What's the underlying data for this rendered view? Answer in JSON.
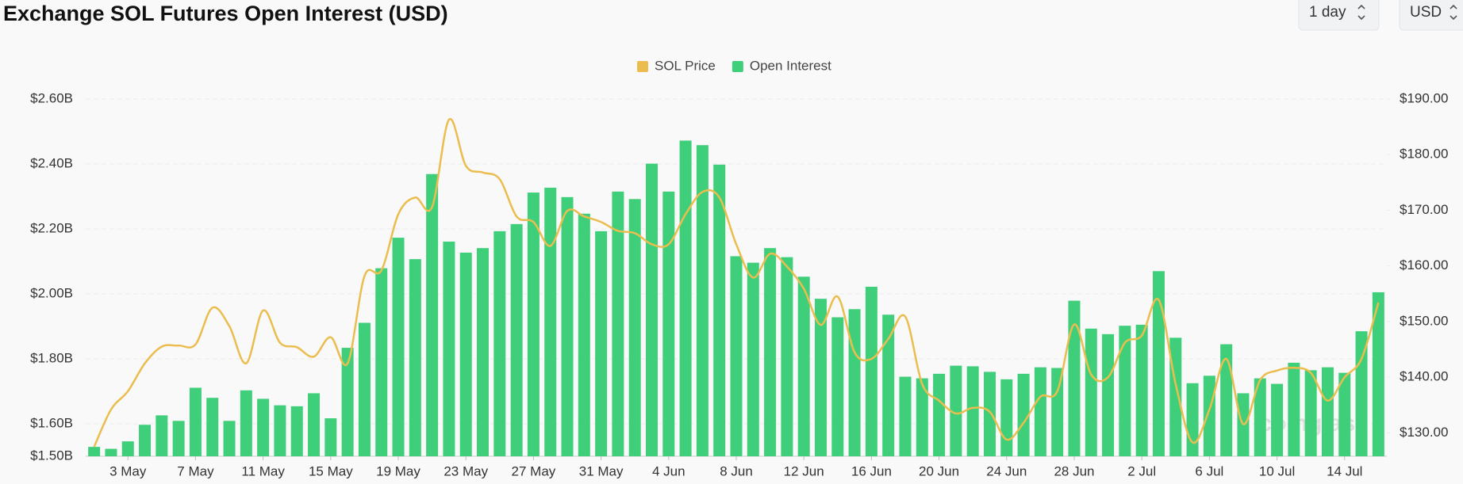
{
  "chart_data": {
    "type": "bar-line",
    "title": "Exchange SOL Futures Open Interest (USD)",
    "controls": {
      "interval": "1 day",
      "currency": "USD"
    },
    "watermark": "coinglass",
    "legend_position": "top",
    "grid": true,
    "categories": [
      null,
      null,
      "3 May",
      null,
      null,
      null,
      "7 May",
      null,
      null,
      null,
      "11 May",
      null,
      null,
      null,
      "15 May",
      null,
      null,
      null,
      "19 May",
      null,
      null,
      null,
      "23 May",
      null,
      null,
      null,
      "27 May",
      null,
      null,
      null,
      "31 May",
      null,
      null,
      null,
      "4 Jun",
      null,
      null,
      null,
      "8 Jun",
      null,
      null,
      null,
      "12 Jun",
      null,
      null,
      null,
      "16 Jun",
      null,
      null,
      null,
      "20 Jun",
      null,
      null,
      null,
      "24 Jun",
      null,
      null,
      null,
      "28 Jun",
      null,
      null,
      null,
      "2 Jul",
      null,
      null,
      null,
      "6 Jul",
      null,
      null,
      null,
      "10 Jul",
      null,
      null,
      null,
      "14 Jul",
      null,
      null
    ],
    "series": [
      {
        "name": "SOL Price",
        "type": "line",
        "axis": "y2",
        "color": "#ebbd4e",
        "values": [
          127.5,
          134.2,
          137.5,
          142.5,
          145.5,
          145.7,
          145.9,
          152.5,
          149.2,
          142.5,
          152,
          146.2,
          145.4,
          143.7,
          147.2,
          142.5,
          158.2,
          159.2,
          169.3,
          172.3,
          170.6,
          186.3,
          178,
          176.8,
          175.6,
          168.9,
          167.9,
          163.6,
          169.9,
          168.9,
          167.9,
          166.3,
          165.9,
          163.9,
          163.9,
          169.3,
          173.3,
          172.3,
          163.9,
          157.9,
          162.2,
          159.9,
          155.9,
          149.4,
          154.5,
          144.5,
          143.3,
          146.9,
          150.9,
          138.8,
          135.8,
          133.5,
          134.5,
          133.8,
          128.8,
          131.8,
          136.5,
          137.5,
          149.5,
          140.5,
          140,
          146.2,
          147.5,
          153.9,
          138.8,
          128.3,
          134.2,
          143.3,
          131.6,
          139.5,
          141.2,
          141.7,
          140.8,
          135.8,
          140,
          143.3,
          153.4
        ]
      },
      {
        "name": "Open Interest",
        "type": "bar",
        "axis": "y",
        "color": "#3fcf7b",
        "values": [
          1.529,
          1.523,
          1.546,
          1.597,
          1.626,
          1.609,
          1.711,
          1.68,
          1.609,
          1.703,
          1.677,
          1.657,
          1.654,
          1.694,
          1.617,
          1.834,
          1.911,
          2.079,
          2.173,
          2.107,
          2.369,
          2.161,
          2.127,
          2.141,
          2.193,
          2.215,
          2.312,
          2.327,
          2.298,
          2.247,
          2.193,
          2.315,
          2.292,
          2.401,
          2.315,
          2.472,
          2.458,
          2.398,
          2.116,
          2.096,
          2.141,
          2.113,
          2.053,
          1.985,
          1.928,
          1.953,
          2.022,
          1.936,
          1.745,
          1.74,
          1.754,
          1.779,
          1.777,
          1.76,
          1.737,
          1.754,
          1.774,
          1.772,
          1.979,
          1.893,
          1.876,
          1.902,
          1.905,
          2.07,
          1.865,
          1.725,
          1.748,
          1.845,
          1.694,
          1.74,
          1.723,
          1.788,
          1.765,
          1.774,
          1.757,
          1.885,
          2.005
        ]
      }
    ],
    "ylim": [
      1.5,
      2.6
    ],
    "yticks": [
      {
        "value": 1.5,
        "label": "$1.50B"
      },
      {
        "value": 1.6,
        "label": "$1.60B"
      },
      {
        "value": 1.8,
        "label": "$1.80B"
      },
      {
        "value": 2.0,
        "label": "$2.00B"
      },
      {
        "value": 2.2,
        "label": "$2.20B"
      },
      {
        "value": 2.4,
        "label": "$2.40B"
      },
      {
        "value": 2.6,
        "label": "$2.60B"
      }
    ],
    "y2lim": [
      125.8,
      190
    ],
    "y2ticks": [
      {
        "value": 130,
        "label": "$130.00"
      },
      {
        "value": 140,
        "label": "$140.00"
      },
      {
        "value": 150,
        "label": "$150.00"
      },
      {
        "value": 160,
        "label": "$160.00"
      },
      {
        "value": 170,
        "label": "$170.00"
      },
      {
        "value": 180,
        "label": "$180.00"
      },
      {
        "value": 190,
        "label": "$190.00"
      }
    ]
  }
}
